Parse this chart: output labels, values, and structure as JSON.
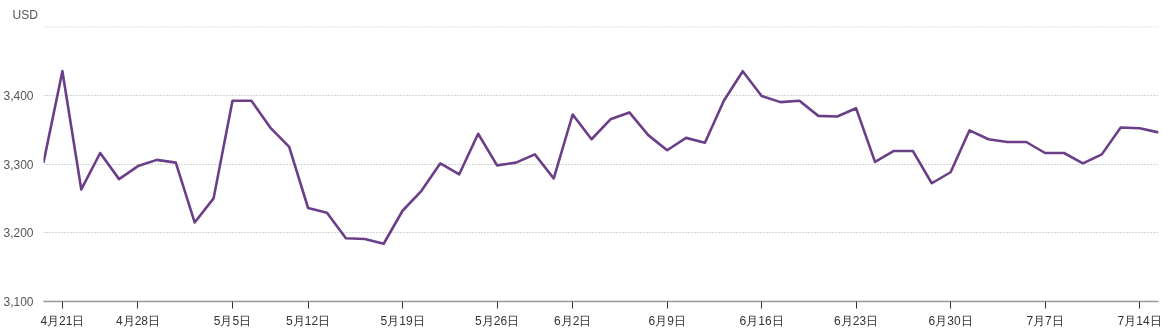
{
  "chart_data": {
    "type": "line",
    "ylabel": "USD",
    "categories": [
      null,
      "4月21日",
      null,
      null,
      null,
      "4月28日",
      null,
      null,
      null,
      null,
      "5月5日",
      null,
      null,
      null,
      "5月12日",
      null,
      null,
      null,
      null,
      "5月19日",
      null,
      null,
      null,
      null,
      "5月26日",
      null,
      null,
      null,
      "6月2日",
      null,
      null,
      null,
      null,
      "6月9日",
      null,
      null,
      null,
      null,
      "6月16日",
      null,
      null,
      null,
      null,
      "6月23日",
      null,
      null,
      null,
      null,
      "6月30日",
      null,
      null,
      null,
      null,
      "7月7日",
      null,
      null,
      null,
      null,
      "7月14日",
      null
    ],
    "series": [
      {
        "color": "#6b3f87",
        "values": [
          3302,
          3435,
          3263,
          3316,
          3278,
          3297,
          3306,
          3302,
          3215,
          3250,
          3392,
          3392,
          3353,
          3325,
          3236,
          3229,
          3192,
          3191,
          3184,
          3232,
          3261,
          3301,
          3285,
          3344,
          3298,
          3302,
          3314,
          3279,
          3372,
          3336,
          3365,
          3375,
          3342,
          3320,
          3338,
          3331,
          3392,
          3435,
          3399,
          3390,
          3392,
          3370,
          3369,
          3381,
          3303,
          3319,
          3319,
          3272,
          3288,
          3349,
          3336,
          3332,
          3332,
          3316,
          3316,
          3301,
          3314,
          3353,
          3352,
          3346
        ]
      }
    ],
    "ylim": [
      3100,
      3500
    ],
    "yticks": [
      {
        "value": 3100,
        "label": "3,100"
      },
      {
        "value": 3200,
        "label": "3,200"
      },
      {
        "value": 3300,
        "label": "3,300"
      },
      {
        "value": 3400,
        "label": "3,400"
      },
      {
        "value": 3500,
        "label": null
      }
    ],
    "grid": "y",
    "line_style": "solid"
  }
}
